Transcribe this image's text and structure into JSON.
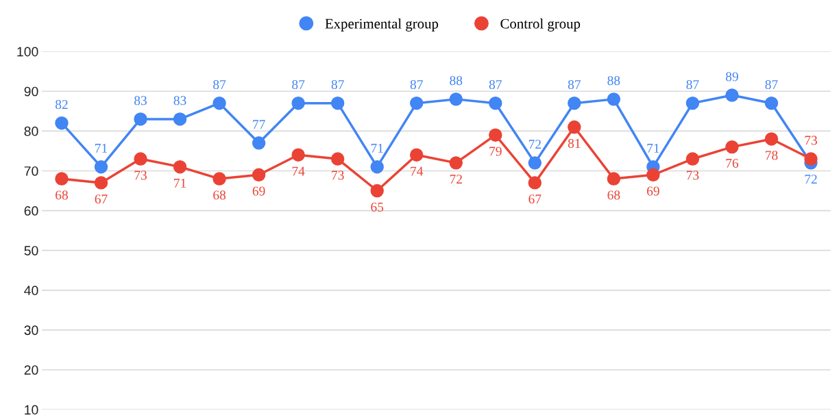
{
  "chart_data": {
    "type": "line",
    "categories": [
      null,
      null,
      null,
      null,
      null,
      null,
      null,
      null,
      null,
      null,
      null,
      null,
      null,
      null,
      null,
      null,
      null,
      null,
      null,
      null
    ],
    "series": [
      {
        "name": "Experimental group",
        "color": "#4285f4",
        "values": [
          82,
          71,
          83,
          83,
          87,
          77,
          87,
          87,
          71,
          87,
          88,
          87,
          72,
          87,
          88,
          71,
          87,
          89,
          87,
          72
        ]
      },
      {
        "name": "Control group",
        "color": "#ea4335",
        "values": [
          68,
          67,
          73,
          71,
          68,
          69,
          74,
          73,
          65,
          74,
          72,
          79,
          67,
          81,
          68,
          69,
          73,
          76,
          78,
          73
        ]
      }
    ],
    "ylim": [
      10,
      100
    ],
    "yticks": [
      10,
      20,
      30,
      40,
      50,
      60,
      70,
      80,
      90,
      100
    ],
    "grid": "y",
    "legend": "top",
    "marker": "circle",
    "line_style": "solid",
    "data_labels": true
  }
}
